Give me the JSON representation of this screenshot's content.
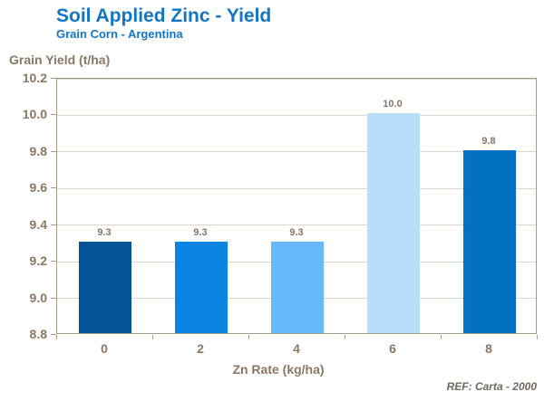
{
  "header": {
    "title": "Soil Applied Zinc - Yield",
    "subtitle": "Grain Corn - Argentina"
  },
  "footer": {
    "ref": "REF: Carta - 2000"
  },
  "colors": {
    "title_blue": "#1375c6",
    "axis_text_brown": "#8a7764",
    "gridline": "#ddd6cb",
    "plot_border": "#a49a89",
    "ref_gray": "#6f695f"
  },
  "chart_data": {
    "type": "bar",
    "title": "Soil Applied Zinc - Yield",
    "subtitle": "Grain Corn - Argentina",
    "xlabel": "Zn Rate (kg/ha)",
    "ylabel": "Grain Yield (t/ha)",
    "categories": [
      "0",
      "2",
      "4",
      "6",
      "8"
    ],
    "values": [
      9.3,
      9.3,
      9.3,
      10.0,
      9.8
    ],
    "value_labels": [
      "9.3",
      "9.3",
      "9.3",
      "10.0",
      "9.8"
    ],
    "bar_colors": [
      "#05549a",
      "#0a84e2",
      "#66b9fb",
      "#b8defb",
      "#0371c1"
    ],
    "ylim": [
      8.8,
      10.2
    ],
    "ytick_step": 0.2,
    "ytick_labels": [
      "8.8",
      "9.0",
      "9.2",
      "9.4",
      "9.6",
      "9.8",
      "10.0",
      "10.2"
    ],
    "grid": true,
    "legend": false
  }
}
